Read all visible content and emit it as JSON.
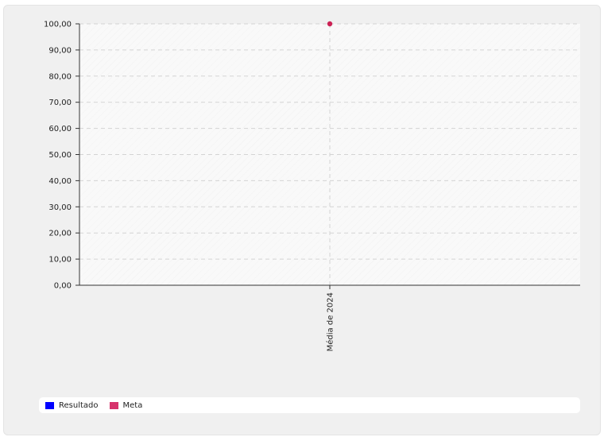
{
  "colors": {
    "resultado": "#0000ff",
    "meta": "#d6336c",
    "meta_point": "#cc2255"
  },
  "chart_data": {
    "type": "line",
    "categories": [
      "Média de 2024"
    ],
    "series": [
      {
        "name": "Resultado",
        "values": [
          null
        ]
      },
      {
        "name": "Meta",
        "values": [
          100
        ]
      }
    ],
    "ylim": [
      0,
      100
    ],
    "yticks": [
      "0,00",
      "10,00",
      "20,00",
      "30,00",
      "40,00",
      "50,00",
      "60,00",
      "70,00",
      "80,00",
      "90,00",
      "100,00"
    ],
    "grid": true,
    "legend_position": "bottom-left"
  },
  "legend": {
    "items": [
      {
        "label": "Resultado",
        "color": "#0000ff"
      },
      {
        "label": "Meta",
        "color": "#d6336c"
      }
    ]
  }
}
